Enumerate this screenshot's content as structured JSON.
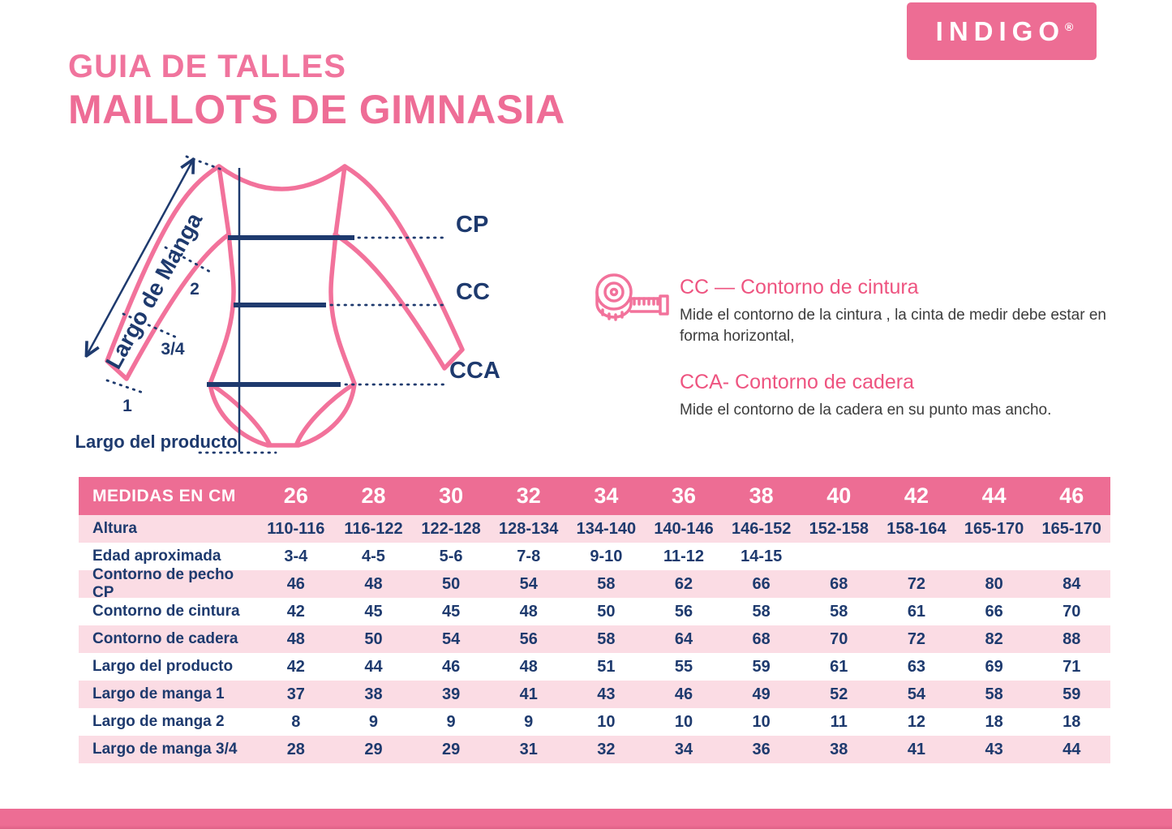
{
  "header": {
    "subtitle": "GUIA DE TALLES",
    "title": "MAILLOTS DE GIMNASIA",
    "brand": "INDIGO",
    "brand_reg": "®"
  },
  "diagram": {
    "sleeve_label": "Largo de Manga",
    "mark_2": "2",
    "mark_34": "3/4",
    "mark_1": "1",
    "cp_label": "CP",
    "cc_label": "CC",
    "cca_label": "CCA",
    "product_length_label": "Largo del producto"
  },
  "info": {
    "cc_title": "CC — Contorno de cintura",
    "cc_body": "Mide el contorno de la cintura , la cinta de medir debe estar en forma horizontal,",
    "cca_title": "CCA- Contorno de cadera",
    "cca_body": "Mide el contorno de la cadera en su punto mas ancho."
  },
  "table": {
    "header_label": "MEDIDAS EN CM",
    "sizes": [
      "26",
      "28",
      "30",
      "32",
      "34",
      "36",
      "38",
      "40",
      "42",
      "44",
      "46"
    ],
    "rows": [
      {
        "label": "Altura",
        "values": [
          "110-116",
          "116-122",
          "122-128",
          "128-134",
          "134-140",
          "140-146",
          "146-152",
          "152-158",
          "158-164",
          "165-170",
          "165-170"
        ]
      },
      {
        "label": "Edad aproximada",
        "values": [
          "3-4",
          "4-5",
          "5-6",
          "7-8",
          "9-10",
          "11-12",
          "14-15",
          "",
          "",
          "",
          ""
        ]
      },
      {
        "label": "Contorno de pecho CP",
        "values": [
          "46",
          "48",
          "50",
          "54",
          "58",
          "62",
          "66",
          "68",
          "72",
          "80",
          "84"
        ]
      },
      {
        "label": "Contorno de cintura",
        "values": [
          "42",
          "45",
          "45",
          "48",
          "50",
          "56",
          "58",
          "58",
          "61",
          "66",
          "70"
        ]
      },
      {
        "label": "Contorno de cadera",
        "values": [
          "48",
          "50",
          "54",
          "56",
          "58",
          "64",
          "68",
          "70",
          "72",
          "82",
          "88"
        ]
      },
      {
        "label": "Largo del producto",
        "values": [
          "42",
          "44",
          "46",
          "48",
          "51",
          "55",
          "59",
          "61",
          "63",
          "69",
          "71"
        ]
      },
      {
        "label": "Largo de manga 1",
        "values": [
          "37",
          "38",
          "39",
          "41",
          "43",
          "46",
          "49",
          "52",
          "54",
          "58",
          "59"
        ]
      },
      {
        "label": "Largo de manga 2",
        "values": [
          "8",
          "9",
          "9",
          "9",
          "10",
          "10",
          "10",
          "11",
          "12",
          "18",
          "18"
        ]
      },
      {
        "label": "Largo de manga 3/4",
        "values": [
          "28",
          "29",
          "29",
          "31",
          "32",
          "34",
          "36",
          "38",
          "41",
          "43",
          "44"
        ]
      }
    ]
  },
  "colors": {
    "brand_pink": "#ED6D94",
    "title_pink": "#EE6D96",
    "heading_pink": "#EE5480",
    "light_pink_row": "#FBDCE4",
    "navy": "#1E3A6E",
    "diagram_pink": "#F2729B",
    "body_text": "#3C3C3C"
  }
}
